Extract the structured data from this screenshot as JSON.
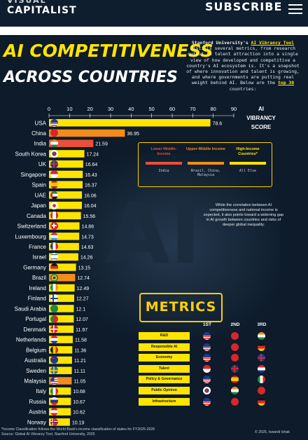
{
  "header": {
    "logo_line1": "VISUAL",
    "logo_line2": "CAPITALIST",
    "subscribe_label": "SUBSCRIBE"
  },
  "title_line1": "AI COMPETITIVENESS",
  "title_line2": "ACROSS COUNTRIES",
  "intro": {
    "part1": "Stanford University's",
    "link": "AI Vibrancy Tool",
    "part2": "distills several metrics, from research output to talent attraction into a single view of how developed and competitive a country's AI ecosystem is. It's a snapshot of where innovation and talent is growing, and where governments are putting real weight behind AI. Below are the",
    "top": "top 30",
    "part3": "countries:"
  },
  "chart_data": {
    "type": "bar",
    "orientation": "horizontal",
    "xlabel": "AI VIBRANCY SCORE",
    "xlim": [
      0,
      90
    ],
    "ticks": [
      0,
      10,
      20,
      30,
      40,
      50,
      60,
      70,
      80,
      90
    ],
    "categories": [
      "USA",
      "China",
      "India",
      "South Korea",
      "UK",
      "Singapore",
      "Spain",
      "UAE",
      "Japan",
      "Canada",
      "Switzerland",
      "Luxembourg",
      "France",
      "Israel",
      "Germany",
      "Brazil",
      "Ireland",
      "Finland",
      "Saudi Arabia",
      "Portugal",
      "Denmark",
      "Netherlands",
      "Belgium",
      "Australia",
      "Sweden",
      "Malaysia",
      "Italy",
      "Russia",
      "Austria",
      "Norway"
    ],
    "values": [
      78.6,
      36.95,
      21.59,
      17.24,
      16.64,
      16.43,
      16.37,
      16.06,
      16.04,
      15.56,
      14.86,
      14.73,
      14.63,
      14.26,
      13.15,
      12.74,
      12.49,
      12.27,
      12.1,
      12.07,
      11.97,
      11.58,
      11.36,
      11.21,
      11.11,
      11.05,
      10.68,
      10.67,
      10.62,
      10.19
    ],
    "labels": [
      "78.6",
      "36.95",
      "21.59",
      "17.24",
      "16.64",
      "16.43",
      "16.37",
      "16.06",
      "16.04",
      "15.56",
      "14.86",
      "14.73",
      "14.63",
      "14.26",
      "13.15",
      "12.74",
      "12.49",
      "12.27",
      "12.1",
      "12.07",
      "11.97",
      "11.58",
      "11.36",
      "11.21",
      "11.11",
      "11.05",
      "10.68",
      "10.67",
      "10.62",
      "10.19"
    ],
    "income_group": [
      "High",
      "Upper-Middle",
      "Lower-Middle",
      "High",
      "High",
      "High",
      "High",
      "High",
      "High",
      "High",
      "High",
      "High",
      "High",
      "High",
      "High",
      "Upper-Middle",
      "High",
      "High",
      "High",
      "High",
      "High",
      "High",
      "High",
      "High",
      "High",
      "Upper-Middle",
      "High",
      "High",
      "High",
      "High"
    ],
    "colors": {
      "High": "#ffe400",
      "Upper-Middle": "#f28c1c",
      "Lower-Middle": "#e8503a"
    }
  },
  "legend": {
    "items": [
      {
        "label": "Lower Middle-Income",
        "sub": "India",
        "color": "#e8503a",
        "text_color": "#e8503a"
      },
      {
        "label": "Upper-Middle Income",
        "sub": "Brazil, China, Malaysia",
        "color": "#f28c1c",
        "text_color": "#f28c1c"
      },
      {
        "label": "High-Income Countries*",
        "sub": "All Else",
        "color": "#ffe400",
        "text_color": "#ffe400"
      }
    ]
  },
  "correlation_note": "While the correlation between AI competitiveness and national income is expected, it also points toward a widening gap in AI growth between countries and risks of deeper global inequality.",
  "bg_text": "AI",
  "metrics": {
    "title": "METRICS",
    "headers": [
      "1ST",
      "2ND",
      "3RD"
    ],
    "rows": [
      {
        "label": "R&D",
        "flags": [
          "us",
          "cn",
          "in"
        ]
      },
      {
        "label": "Responsible AI",
        "flags": [
          "us",
          "cn",
          "de"
        ]
      },
      {
        "label": "Economy",
        "flags": [
          "us",
          "cn",
          "uk"
        ]
      },
      {
        "label": "Talent",
        "flags": [
          "sg",
          "uk",
          "nl"
        ]
      },
      {
        "label": "Policy & Governance",
        "flags": [
          "us",
          "es",
          "it"
        ]
      },
      {
        "label": "Public Opinion",
        "flags": [
          "kr",
          "in",
          "cn"
        ]
      },
      {
        "label": "Infrastructure",
        "flags": [
          "us",
          "cn",
          "de"
        ]
      }
    ]
  },
  "footer": {
    "note": "*Income Classification follows the World Bank's income classification of states for FY2025-2026",
    "source": "Source: Global AI Vibrancy Tool, Stanford University, 2025",
    "copyright": "© 2025, Iswardi Ishak"
  }
}
